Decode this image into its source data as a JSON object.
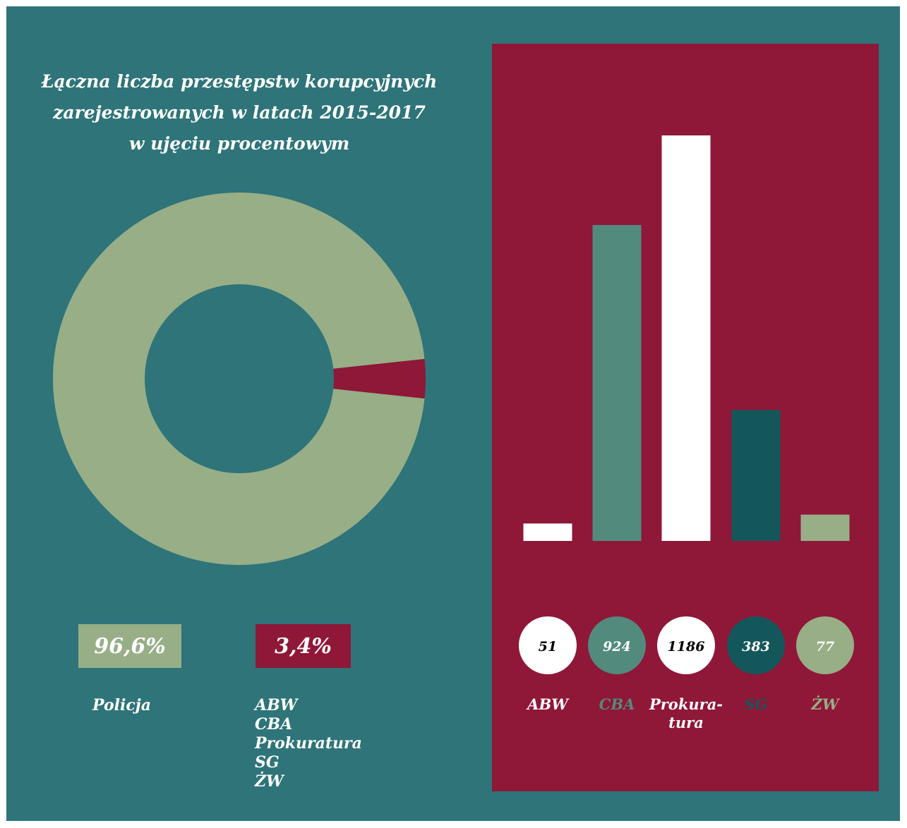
{
  "title": {
    "lines": [
      "Łączna liczba przestępstw korupcyjnych",
      "zarejestrowanych w latach 2015-2017",
      "w ujęciu procentowym"
    ]
  },
  "colors": {
    "background": "#2e7479",
    "panel": "#8f1737",
    "sage": "#97ae87",
    "teal_light": "#528a7e",
    "teal_dark": "#14575b",
    "white": "#ffffff"
  },
  "donut": {
    "policja_pct": "96,6%",
    "others_pct": "3,4%",
    "policja_label": "Policja",
    "others_labels": [
      "ABW",
      "CBA",
      "Prokuratura",
      "SG",
      "ŻW"
    ]
  },
  "chart_data": [
    {
      "type": "pie",
      "variant": "donut",
      "categories": [
        "Policja",
        "ABW, CBA, Prokuratura, SG, ŻW"
      ],
      "values": [
        96.6,
        3.4
      ],
      "colors": [
        "#97ae87",
        "#8f1737"
      ]
    },
    {
      "type": "bar",
      "categories": [
        "ABW",
        "CBA",
        "Prokura-tura",
        "SG",
        "ŻW"
      ],
      "category_lines": [
        [
          "ABW"
        ],
        [
          "CBA"
        ],
        [
          "Prokura-",
          "tura"
        ],
        [
          "SG"
        ],
        [
          "ŻW"
        ]
      ],
      "values": [
        51,
        924,
        1186,
        383,
        77
      ],
      "value_labels": [
        "51",
        "924",
        "1186",
        "383",
        "77"
      ],
      "colors": [
        "#ffffff",
        "#528a7e",
        "#ffffff",
        "#14575b",
        "#97ae87"
      ],
      "label_colors": [
        "#ffffff",
        "#528a7e",
        "#ffffff",
        "#14575b",
        "#97ae87"
      ],
      "value_text_colors": [
        "#000000",
        "#ffffff",
        "#000000",
        "#ffffff",
        "#ffffff"
      ],
      "ylim": [
        0,
        1186
      ],
      "grid": false
    }
  ]
}
